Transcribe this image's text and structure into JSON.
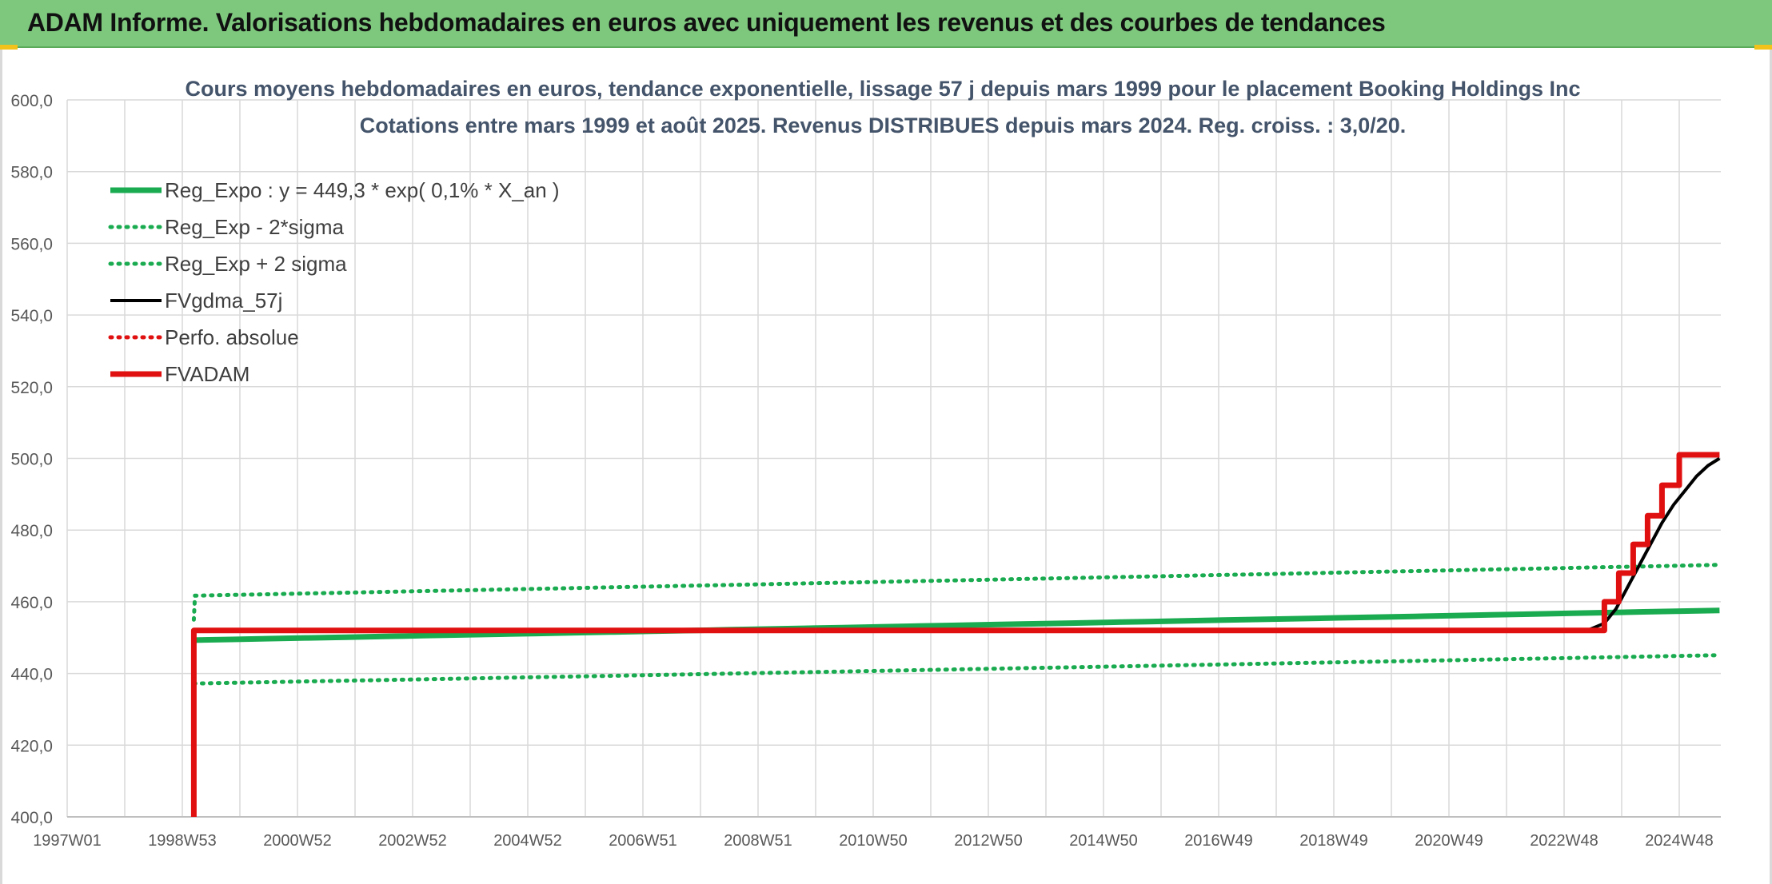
{
  "header": {
    "title": "ADAM Informe. Valorisations hebdomadaires en euros avec uniquement les revenus et des courbes de tendances"
  },
  "chart_data": {
    "type": "line",
    "title_line1": "Cours moyens hebdomadaires en euros, tendance exponentielle, lissage 57 j depuis mars 1999 pour le placement Booking Holdings Inc",
    "title_line2": "Cotations entre mars 1999 et août 2025. Revenus DISTRIBUES depuis mars 2024. Reg. croiss. : 3,0/20.",
    "ylim": [
      400,
      600
    ],
    "y_ticks": [
      "400,0",
      "420,0",
      "440,0",
      "460,0",
      "480,0",
      "500,0",
      "520,0",
      "540,0",
      "560,0",
      "580,0",
      "600,0"
    ],
    "x_ticks": [
      "1997W01",
      "1998W53",
      "2000W52",
      "2002W52",
      "2004W52",
      "2006W51",
      "2008W51",
      "2010W50",
      "2012W50",
      "2014W50",
      "2016W49",
      "2018W49",
      "2020W49",
      "2022W48",
      "2024W48"
    ],
    "legend_position": "top-left",
    "grid": true,
    "series": [
      {
        "name": "Reg_Expo : y = 449,3 * exp( 0,1% *  X_an )",
        "color": "#1aab50",
        "style": "solid-thick",
        "points": [
          [
            2.2,
            449.3
          ],
          [
            28.7,
            457.6
          ]
        ]
      },
      {
        "name": "Reg_Exp - 2*sigma",
        "color": "#1aab50",
        "style": "dotted",
        "points": [
          [
            2.2,
            437.2
          ],
          [
            28.7,
            445.1
          ]
        ]
      },
      {
        "name": "Reg_Exp + 2 sigma",
        "color": "#1aab50",
        "style": "dotted",
        "points": [
          [
            2.2,
            455.0
          ],
          [
            2.22,
            461.7
          ],
          [
            28.7,
            470.3
          ]
        ]
      },
      {
        "name": "FVgdma_57j",
        "color": "#000000",
        "style": "solid",
        "points": [
          [
            2.2,
            400.0
          ],
          [
            2.2,
            452.0
          ],
          [
            26.4,
            452.0
          ],
          [
            26.7,
            454.0
          ],
          [
            26.9,
            458.0
          ],
          [
            27.1,
            464.0
          ],
          [
            27.3,
            470.0
          ],
          [
            27.5,
            476.0
          ],
          [
            27.7,
            482.0
          ],
          [
            27.9,
            487.0
          ],
          [
            28.1,
            491.0
          ],
          [
            28.3,
            495.0
          ],
          [
            28.5,
            498.0
          ],
          [
            28.7,
            500.0
          ]
        ]
      },
      {
        "name": "Perfo. absolue",
        "color": "#e01010",
        "style": "dotted",
        "points": []
      },
      {
        "name": "FVADAM",
        "color": "#e01010",
        "style": "solid-thick",
        "points": [
          [
            2.2,
            400.0
          ],
          [
            2.2,
            452.0
          ],
          [
            26.7,
            452.0
          ],
          [
            26.7,
            460.0
          ],
          [
            26.95,
            460.0
          ],
          [
            26.95,
            468.0
          ],
          [
            27.2,
            468.0
          ],
          [
            27.2,
            476.0
          ],
          [
            27.45,
            476.0
          ],
          [
            27.45,
            484.0
          ],
          [
            27.7,
            484.0
          ],
          [
            27.7,
            492.5
          ],
          [
            28.0,
            492.5
          ],
          [
            28.0,
            501.0
          ],
          [
            28.7,
            501.0
          ]
        ]
      }
    ]
  }
}
